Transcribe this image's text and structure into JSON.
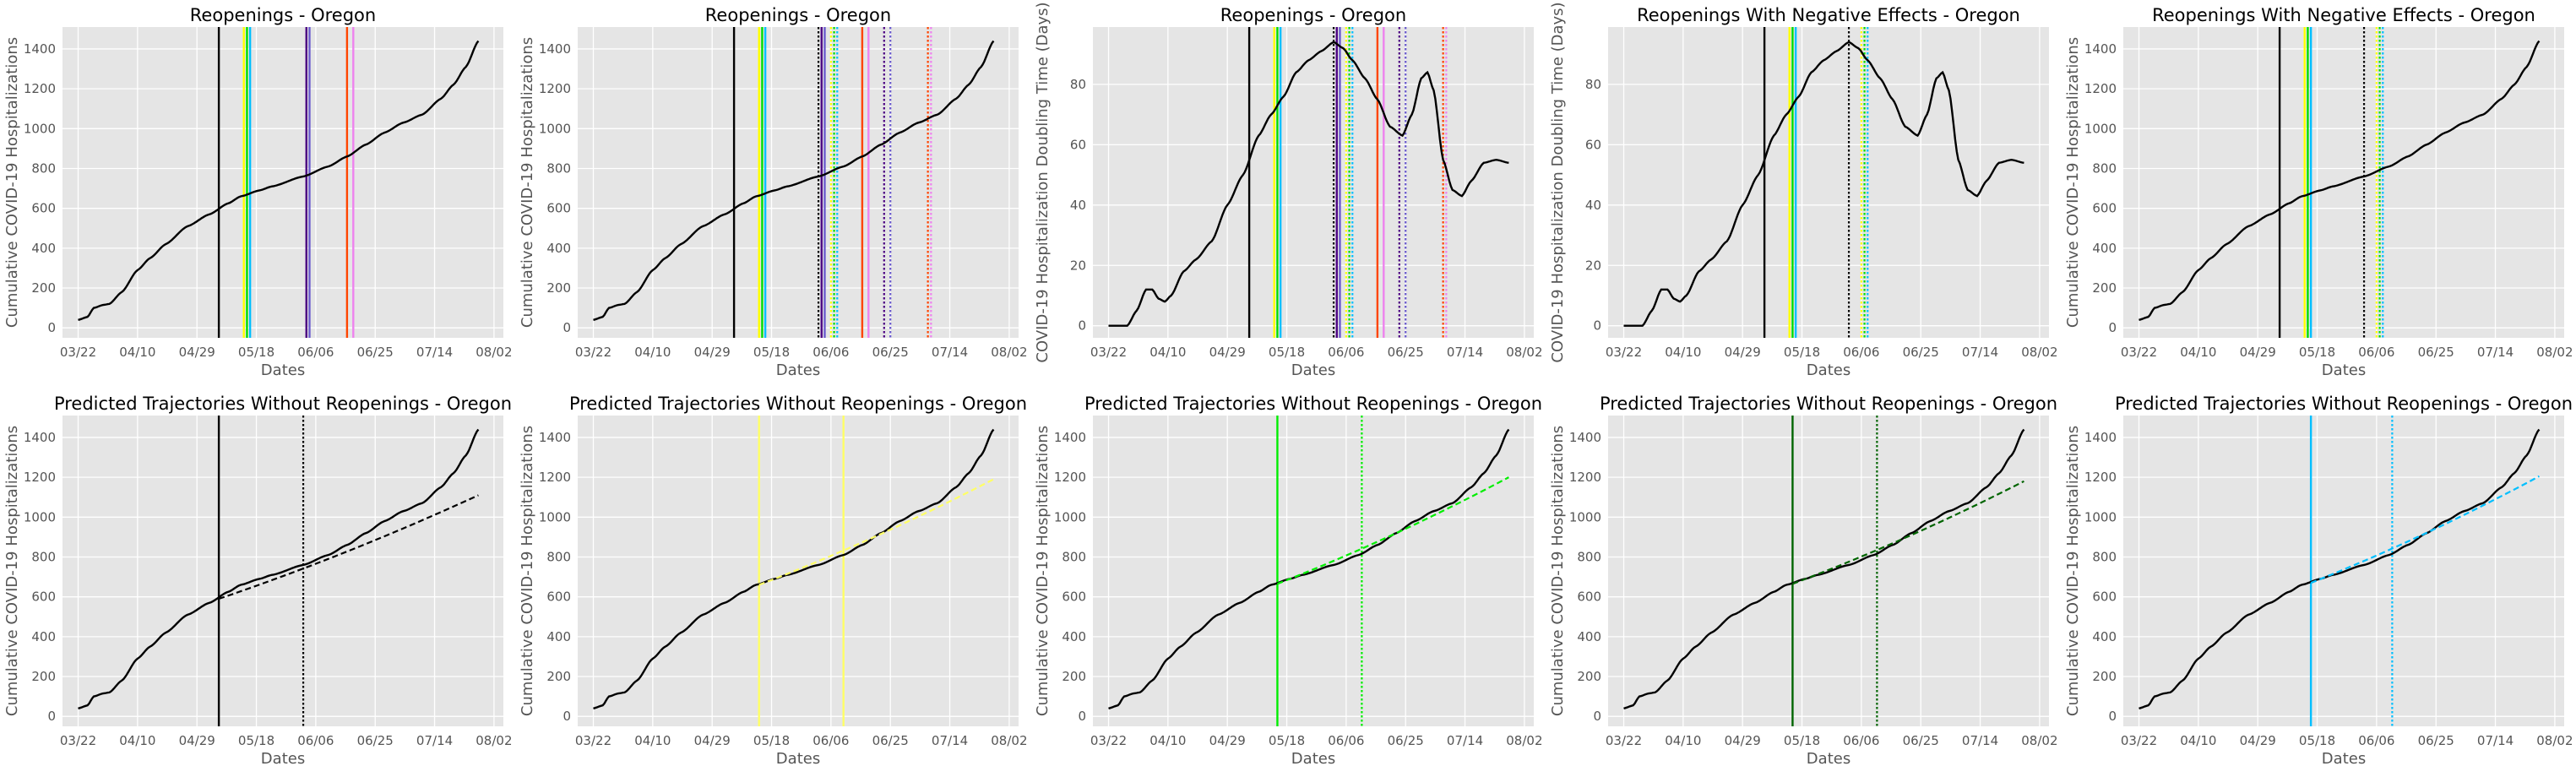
{
  "figure_background": "#ffffff",
  "chart_data": [
    {
      "type": "line",
      "title": "Reopenings - Oregon",
      "xlabel": "Dates",
      "ylabel": "Cumulative COVID-19 Hospitalizations",
      "x_ticks": [
        "03/22",
        "04/10",
        "04/29",
        "05/18",
        "06/06",
        "06/25",
        "07/14",
        "08/02"
      ],
      "y_ticks": [
        0,
        200,
        400,
        600,
        800,
        1000,
        1200,
        1400
      ],
      "ylim": [
        -50,
        1510
      ],
      "curve": "cumulative",
      "series": [
        {
          "color": "#000000"
        }
      ],
      "vlines": [
        {
          "day": 45,
          "color": "#000000",
          "style": "solid"
        },
        {
          "day": 53,
          "color": "#ffff00",
          "style": "solid"
        },
        {
          "day": 54,
          "color": "#00dd00",
          "style": "solid"
        },
        {
          "day": 55,
          "color": "#00bfff",
          "style": "solid"
        },
        {
          "day": 73,
          "color": "#4b0082",
          "style": "solid"
        },
        {
          "day": 74,
          "color": "#6a5acd",
          "style": "solid"
        },
        {
          "day": 86,
          "color": "#ff4500",
          "style": "solid"
        },
        {
          "day": 88,
          "color": "#ee82ee",
          "style": "solid"
        }
      ],
      "grid": true
    },
    {
      "type": "line",
      "title": "Reopenings - Oregon",
      "xlabel": "Dates",
      "ylabel": "Cumulative COVID-19 Hospitalizations",
      "x_ticks": [
        "03/22",
        "04/10",
        "04/29",
        "05/18",
        "06/06",
        "06/25",
        "07/14",
        "08/02"
      ],
      "y_ticks": [
        0,
        200,
        400,
        600,
        800,
        1000,
        1200,
        1400
      ],
      "ylim": [
        -50,
        1510
      ],
      "curve": "cumulative",
      "series": [
        {
          "color": "#000000"
        }
      ],
      "vlines": [
        {
          "day": 45,
          "color": "#000000",
          "style": "solid"
        },
        {
          "day": 53,
          "color": "#ffff00",
          "style": "solid"
        },
        {
          "day": 54,
          "color": "#00dd00",
          "style": "solid"
        },
        {
          "day": 55,
          "color": "#00bfff",
          "style": "solid"
        },
        {
          "day": 72,
          "color": "#000000",
          "style": "dotted"
        },
        {
          "day": 73,
          "color": "#4b0082",
          "style": "solid"
        },
        {
          "day": 74,
          "color": "#6a5acd",
          "style": "solid"
        },
        {
          "day": 76,
          "color": "#ffff00",
          "style": "dotted"
        },
        {
          "day": 77,
          "color": "#00dd00",
          "style": "dotted"
        },
        {
          "day": 78,
          "color": "#00bfff",
          "style": "dotted"
        },
        {
          "day": 86,
          "color": "#ff4500",
          "style": "solid"
        },
        {
          "day": 88,
          "color": "#ee82ee",
          "style": "solid"
        },
        {
          "day": 93,
          "color": "#4b0082",
          "style": "dotted"
        },
        {
          "day": 95,
          "color": "#6a5acd",
          "style": "dotted"
        },
        {
          "day": 107,
          "color": "#ff4500",
          "style": "dotted"
        },
        {
          "day": 108,
          "color": "#ee82ee",
          "style": "dotted"
        }
      ],
      "grid": true
    },
    {
      "type": "line",
      "title": "Reopenings - Oregon",
      "xlabel": "Dates",
      "ylabel": "COVID-19 Hospitalization Doubling Time (Days)",
      "x_ticks": [
        "03/22",
        "04/10",
        "04/29",
        "05/18",
        "06/06",
        "06/25",
        "07/14",
        "08/02"
      ],
      "y_ticks": [
        0,
        20,
        40,
        60,
        80
      ],
      "ylim": [
        -4,
        99
      ],
      "curve": "doubling",
      "series": [
        {
          "color": "#000000"
        }
      ],
      "vlines": [
        {
          "day": 45,
          "color": "#000000",
          "style": "solid"
        },
        {
          "day": 53,
          "color": "#ffff00",
          "style": "solid"
        },
        {
          "day": 54,
          "color": "#00dd00",
          "style": "solid"
        },
        {
          "day": 55,
          "color": "#00bfff",
          "style": "solid"
        },
        {
          "day": 72,
          "color": "#000000",
          "style": "dotted"
        },
        {
          "day": 73,
          "color": "#4b0082",
          "style": "solid"
        },
        {
          "day": 74,
          "color": "#6a5acd",
          "style": "solid"
        },
        {
          "day": 76,
          "color": "#ffff00",
          "style": "dotted"
        },
        {
          "day": 77,
          "color": "#00dd00",
          "style": "dotted"
        },
        {
          "day": 78,
          "color": "#00bfff",
          "style": "dotted"
        },
        {
          "day": 86,
          "color": "#ff4500",
          "style": "solid"
        },
        {
          "day": 88,
          "color": "#ee82ee",
          "style": "solid"
        },
        {
          "day": 93,
          "color": "#4b0082",
          "style": "dotted"
        },
        {
          "day": 95,
          "color": "#6a5acd",
          "style": "dotted"
        },
        {
          "day": 107,
          "color": "#ff4500",
          "style": "dotted"
        },
        {
          "day": 108,
          "color": "#ee82ee",
          "style": "dotted"
        }
      ],
      "grid": true
    },
    {
      "type": "line",
      "title": "Reopenings With Negative Effects - Oregon",
      "xlabel": "Dates",
      "ylabel": "COVID-19 Hospitalization Doubling Time (Days)",
      "x_ticks": [
        "03/22",
        "04/10",
        "04/29",
        "05/18",
        "06/06",
        "06/25",
        "07/14",
        "08/02"
      ],
      "y_ticks": [
        0,
        20,
        40,
        60,
        80
      ],
      "ylim": [
        -4,
        99
      ],
      "curve": "doubling",
      "series": [
        {
          "color": "#000000"
        }
      ],
      "vlines": [
        {
          "day": 45,
          "color": "#000000",
          "style": "solid"
        },
        {
          "day": 53,
          "color": "#ffff00",
          "style": "solid"
        },
        {
          "day": 54,
          "color": "#00dd00",
          "style": "solid"
        },
        {
          "day": 55,
          "color": "#00bfff",
          "style": "solid"
        },
        {
          "day": 72,
          "color": "#000000",
          "style": "dotted"
        },
        {
          "day": 76,
          "color": "#ffff00",
          "style": "dotted"
        },
        {
          "day": 77,
          "color": "#00dd00",
          "style": "dotted"
        },
        {
          "day": 78,
          "color": "#00bfff",
          "style": "dotted"
        }
      ],
      "grid": true
    },
    {
      "type": "line",
      "title": "Reopenings With Negative Effects - Oregon",
      "xlabel": "Dates",
      "ylabel": "Cumulative COVID-19 Hospitalizations",
      "x_ticks": [
        "03/22",
        "04/10",
        "04/29",
        "05/18",
        "06/06",
        "06/25",
        "07/14",
        "08/02"
      ],
      "y_ticks": [
        0,
        200,
        400,
        600,
        800,
        1000,
        1200,
        1400
      ],
      "ylim": [
        -50,
        1510
      ],
      "curve": "cumulative",
      "series": [
        {
          "color": "#000000"
        }
      ],
      "vlines": [
        {
          "day": 45,
          "color": "#000000",
          "style": "solid"
        },
        {
          "day": 53,
          "color": "#ffff00",
          "style": "solid"
        },
        {
          "day": 54,
          "color": "#00dd00",
          "style": "solid"
        },
        {
          "day": 55,
          "color": "#00bfff",
          "style": "solid"
        },
        {
          "day": 72,
          "color": "#000000",
          "style": "dotted"
        },
        {
          "day": 76,
          "color": "#ffff00",
          "style": "dotted"
        },
        {
          "day": 77,
          "color": "#00dd00",
          "style": "dotted"
        },
        {
          "day": 78,
          "color": "#00bfff",
          "style": "dotted"
        }
      ],
      "grid": true
    },
    {
      "type": "line",
      "title": "Predicted Trajectories Without Reopenings - Oregon",
      "xlabel": "Dates",
      "ylabel": "Cumulative COVID-19 Hospitalizations",
      "x_ticks": [
        "03/22",
        "04/10",
        "04/29",
        "05/18",
        "06/06",
        "06/25",
        "07/14",
        "08/02"
      ],
      "y_ticks": [
        0,
        200,
        400,
        600,
        800,
        1000,
        1200,
        1400
      ],
      "ylim": [
        -50,
        1510
      ],
      "curve": "cumulative",
      "series": [
        {
          "color": "#000000"
        }
      ],
      "prediction": {
        "start_day": 45,
        "end_day": 128,
        "start_value": 590,
        "end_value": 1110,
        "color": "#000000"
      },
      "vlines": [
        {
          "day": 45,
          "color": "#000000",
          "style": "solid"
        },
        {
          "day": 72,
          "color": "#000000",
          "style": "dotted"
        }
      ],
      "grid": true
    },
    {
      "type": "line",
      "title": "Predicted Trajectories Without Reopenings - Oregon",
      "xlabel": "Dates",
      "ylabel": "Cumulative COVID-19 Hospitalizations",
      "x_ticks": [
        "03/22",
        "04/10",
        "04/29",
        "05/18",
        "06/06",
        "06/25",
        "07/14",
        "08/02"
      ],
      "y_ticks": [
        0,
        200,
        400,
        600,
        800,
        1000,
        1200,
        1400
      ],
      "ylim": [
        -50,
        1510
      ],
      "curve": "cumulative",
      "series": [
        {
          "color": "#000000"
        }
      ],
      "prediction": {
        "start_day": 53,
        "end_day": 128,
        "start_value": 660,
        "end_value": 1190,
        "color": "#ffff66"
      },
      "vlines": [
        {
          "day": 53,
          "color": "#ffff66",
          "style": "solid"
        },
        {
          "day": 80,
          "color": "#ffff66",
          "style": "solid"
        }
      ],
      "grid": true
    },
    {
      "type": "line",
      "title": "Predicted Trajectories Without Reopenings - Oregon",
      "xlabel": "Dates",
      "ylabel": "Cumulative COVID-19 Hospitalizations",
      "x_ticks": [
        "03/22",
        "04/10",
        "04/29",
        "05/18",
        "06/06",
        "06/25",
        "07/14",
        "08/02"
      ],
      "y_ticks": [
        0,
        200,
        400,
        600,
        800,
        1000,
        1200,
        1400
      ],
      "ylim": [
        -50,
        1510
      ],
      "curve": "cumulative",
      "series": [
        {
          "color": "#000000"
        }
      ],
      "prediction": {
        "start_day": 54,
        "end_day": 128,
        "start_value": 665,
        "end_value": 1200,
        "color": "#00ee00"
      },
      "vlines": [
        {
          "day": 54,
          "color": "#00ee00",
          "style": "solid"
        },
        {
          "day": 81,
          "color": "#00ee00",
          "style": "dotted"
        }
      ],
      "grid": true
    },
    {
      "type": "line",
      "title": "Predicted Trajectories Without Reopenings - Oregon",
      "xlabel": "Dates",
      "ylabel": "Cumulative COVID-19 Hospitalizations",
      "x_ticks": [
        "03/22",
        "04/10",
        "04/29",
        "05/18",
        "06/06",
        "06/25",
        "07/14",
        "08/02"
      ],
      "y_ticks": [
        0,
        200,
        400,
        600,
        800,
        1000,
        1200,
        1400
      ],
      "ylim": [
        -50,
        1510
      ],
      "curve": "cumulative",
      "series": [
        {
          "color": "#000000"
        }
      ],
      "prediction": {
        "start_day": 54,
        "end_day": 128,
        "start_value": 665,
        "end_value": 1180,
        "color": "#006400"
      },
      "vlines": [
        {
          "day": 54,
          "color": "#006400",
          "style": "solid"
        },
        {
          "day": 81,
          "color": "#006400",
          "style": "dotted"
        }
      ],
      "grid": true
    },
    {
      "type": "line",
      "title": "Predicted Trajectories Without Reopenings - Oregon",
      "xlabel": "Dates",
      "ylabel": "Cumulative COVID-19 Hospitalizations",
      "x_ticks": [
        "03/22",
        "04/10",
        "04/29",
        "05/18",
        "06/06",
        "06/25",
        "07/14",
        "08/02"
      ],
      "y_ticks": [
        0,
        200,
        400,
        600,
        800,
        1000,
        1200,
        1400
      ],
      "ylim": [
        -50,
        1510
      ],
      "curve": "cumulative",
      "series": [
        {
          "color": "#000000"
        }
      ],
      "prediction": {
        "start_day": 55,
        "end_day": 128,
        "start_value": 670,
        "end_value": 1205,
        "color": "#00bfff"
      },
      "vlines": [
        {
          "day": 55,
          "color": "#00bfff",
          "style": "solid"
        },
        {
          "day": 81,
          "color": "#00bfff",
          "style": "dotted"
        }
      ],
      "grid": true
    }
  ]
}
